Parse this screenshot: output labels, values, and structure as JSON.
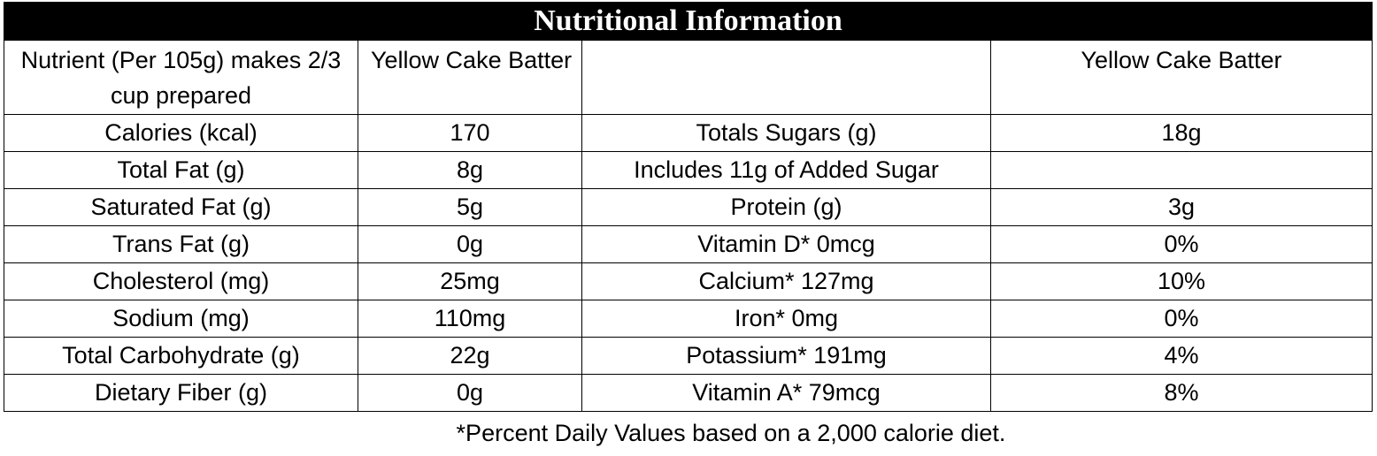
{
  "title": "Nutritional Information",
  "header": {
    "nutrient_label": "Nutrient (Per 105g) makes 2/3 cup prepared",
    "product_left": "Yellow Cake Batter",
    "blank": "",
    "product_right": "Yellow Cake Batter"
  },
  "rows": [
    {
      "left_nutrient": "Calories (kcal)",
      "left_value": "170",
      "right_nutrient": "Totals Sugars (g)",
      "right_value": "18g"
    },
    {
      "left_nutrient": "Total Fat (g)",
      "left_value": "8g",
      "right_nutrient": "Includes 11g of Added Sugar",
      "right_value": ""
    },
    {
      "left_nutrient": "Saturated Fat (g)",
      "left_value": "5g",
      "right_nutrient": "Protein (g)",
      "right_value": "3g"
    },
    {
      "left_nutrient": "Trans Fat (g)",
      "left_value": "0g",
      "right_nutrient": "Vitamin D*  0mcg",
      "right_value": "0%"
    },
    {
      "left_nutrient": "Cholesterol (mg)",
      "left_value": "25mg",
      "right_nutrient": "Calcium* 127mg",
      "right_value": "10%"
    },
    {
      "left_nutrient": "Sodium (mg)",
      "left_value": "110mg",
      "right_nutrient": "Iron* 0mg",
      "right_value": "0%"
    },
    {
      "left_nutrient": "Total Carbohydrate (g)",
      "left_value": "22g",
      "right_nutrient": "Potassium* 191mg",
      "right_value": "4%"
    },
    {
      "left_nutrient": "Dietary Fiber (g)",
      "left_value": "0g",
      "right_nutrient": "Vitamin A*  79mcg",
      "right_value": "8%"
    }
  ],
  "footnote": "*Percent Daily Values based on a 2,000 calorie diet.",
  "colors": {
    "title_background": "#000000",
    "title_text": "#ffffff",
    "grid_lines": "#000000"
  }
}
